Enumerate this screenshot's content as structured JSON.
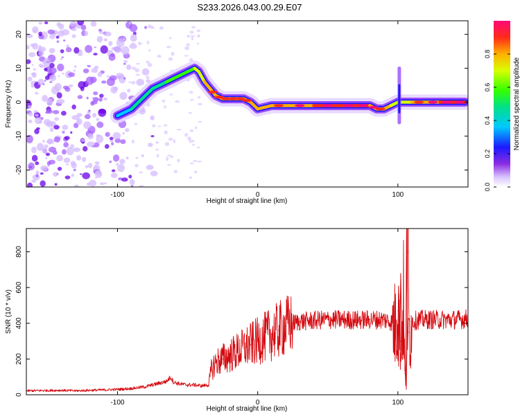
{
  "figure_title": "S233.2026.043.00.29.E07",
  "colors": {
    "signal": "#d4080e",
    "ridge": "#ff2020",
    "cloud": "#9b4dff",
    "axis": "#000000"
  },
  "chart_data": [
    {
      "type": "heatmap",
      "xlabel": "Height of straight line (km)",
      "ylabel": "Frequency (Hz)",
      "xlim": [
        -165,
        150
      ],
      "ylim": [
        -25,
        24
      ],
      "xticks": [
        -100,
        0,
        100
      ],
      "yticks": [
        -20,
        -10,
        0,
        10,
        20
      ],
      "colorbar": {
        "label": "Normalized spectral amplitude",
        "range": [
          0,
          1
        ],
        "ticks": [
          0.0,
          0.2,
          0.4,
          0.6,
          0.8
        ],
        "tick_labels": [
          "0.0",
          "0.2",
          "0.4",
          "0.6",
          "0.8"
        ]
      },
      "ridge": {
        "x": [
          -100,
          -95,
          -90,
          -85,
          -80,
          -75,
          -70,
          -65,
          -60,
          -55,
          -50,
          -45,
          -42,
          -38,
          -34,
          -30,
          -25,
          -20,
          -15,
          -10,
          -5,
          0,
          10,
          20,
          40,
          60,
          70,
          80,
          85,
          90,
          95,
          100,
          110,
          120,
          130,
          140,
          148
        ],
        "y": [
          -4,
          -3,
          -2,
          0,
          2,
          4,
          5,
          6,
          7,
          8,
          9,
          10,
          9,
          6,
          4,
          2,
          1,
          1,
          1,
          1,
          0,
          -2,
          -1,
          -1,
          -1,
          -1,
          -1,
          -1,
          -2,
          -2,
          -1,
          0,
          0,
          0,
          0,
          0,
          0
        ],
        "amplitude": [
          0.3,
          0.35,
          0.4,
          0.45,
          0.45,
          0.5,
          0.55,
          0.55,
          0.6,
          0.6,
          0.65,
          0.7,
          0.75,
          0.8,
          0.85,
          0.85,
          0.9,
          0.9,
          0.9,
          0.9,
          0.85,
          0.8,
          0.85,
          0.9,
          0.95,
          0.95,
          0.95,
          0.95,
          0.9,
          0.85,
          0.8,
          0.75,
          0.85,
          0.9,
          0.95,
          0.95,
          0.95
        ]
      },
      "noise_region_x": [
        -165,
        -85
      ]
    },
    {
      "type": "line",
      "xlabel": "Height of straight line (km)",
      "ylabel": "SNR (10 * v/v)",
      "xlim": [
        -165,
        150
      ],
      "ylim": [
        0,
        930
      ],
      "xticks": [
        -100,
        0,
        100
      ],
      "yticks": [
        0,
        200,
        400,
        600,
        800
      ],
      "series": [
        {
          "name": "SNR",
          "x": [
            -165,
            -150,
            -140,
            -130,
            -120,
            -110,
            -100,
            -90,
            -80,
            -70,
            -65,
            -62,
            -60,
            -55,
            -50,
            -45,
            -40,
            -35,
            -33,
            -30,
            -25,
            -20,
            -15,
            -10,
            -5,
            0,
            5,
            10,
            15,
            20,
            25,
            30,
            40,
            50,
            60,
            70,
            80,
            90,
            95,
            98,
            100,
            102,
            104,
            105,
            106,
            107,
            108,
            110,
            115,
            120,
            130,
            140,
            150
          ],
          "y": [
            22,
            24,
            25,
            22,
            25,
            27,
            30,
            35,
            45,
            65,
            75,
            100,
            70,
            60,
            55,
            55,
            50,
            55,
            140,
            180,
            200,
            220,
            240,
            260,
            280,
            300,
            320,
            340,
            360,
            385,
            400,
            410,
            415,
            420,
            420,
            418,
            420,
            420,
            410,
            380,
            470,
            300,
            520,
            120,
            60,
            800,
            350,
            410,
            420,
            420,
            420,
            420,
            425
          ]
        }
      ]
    }
  ]
}
